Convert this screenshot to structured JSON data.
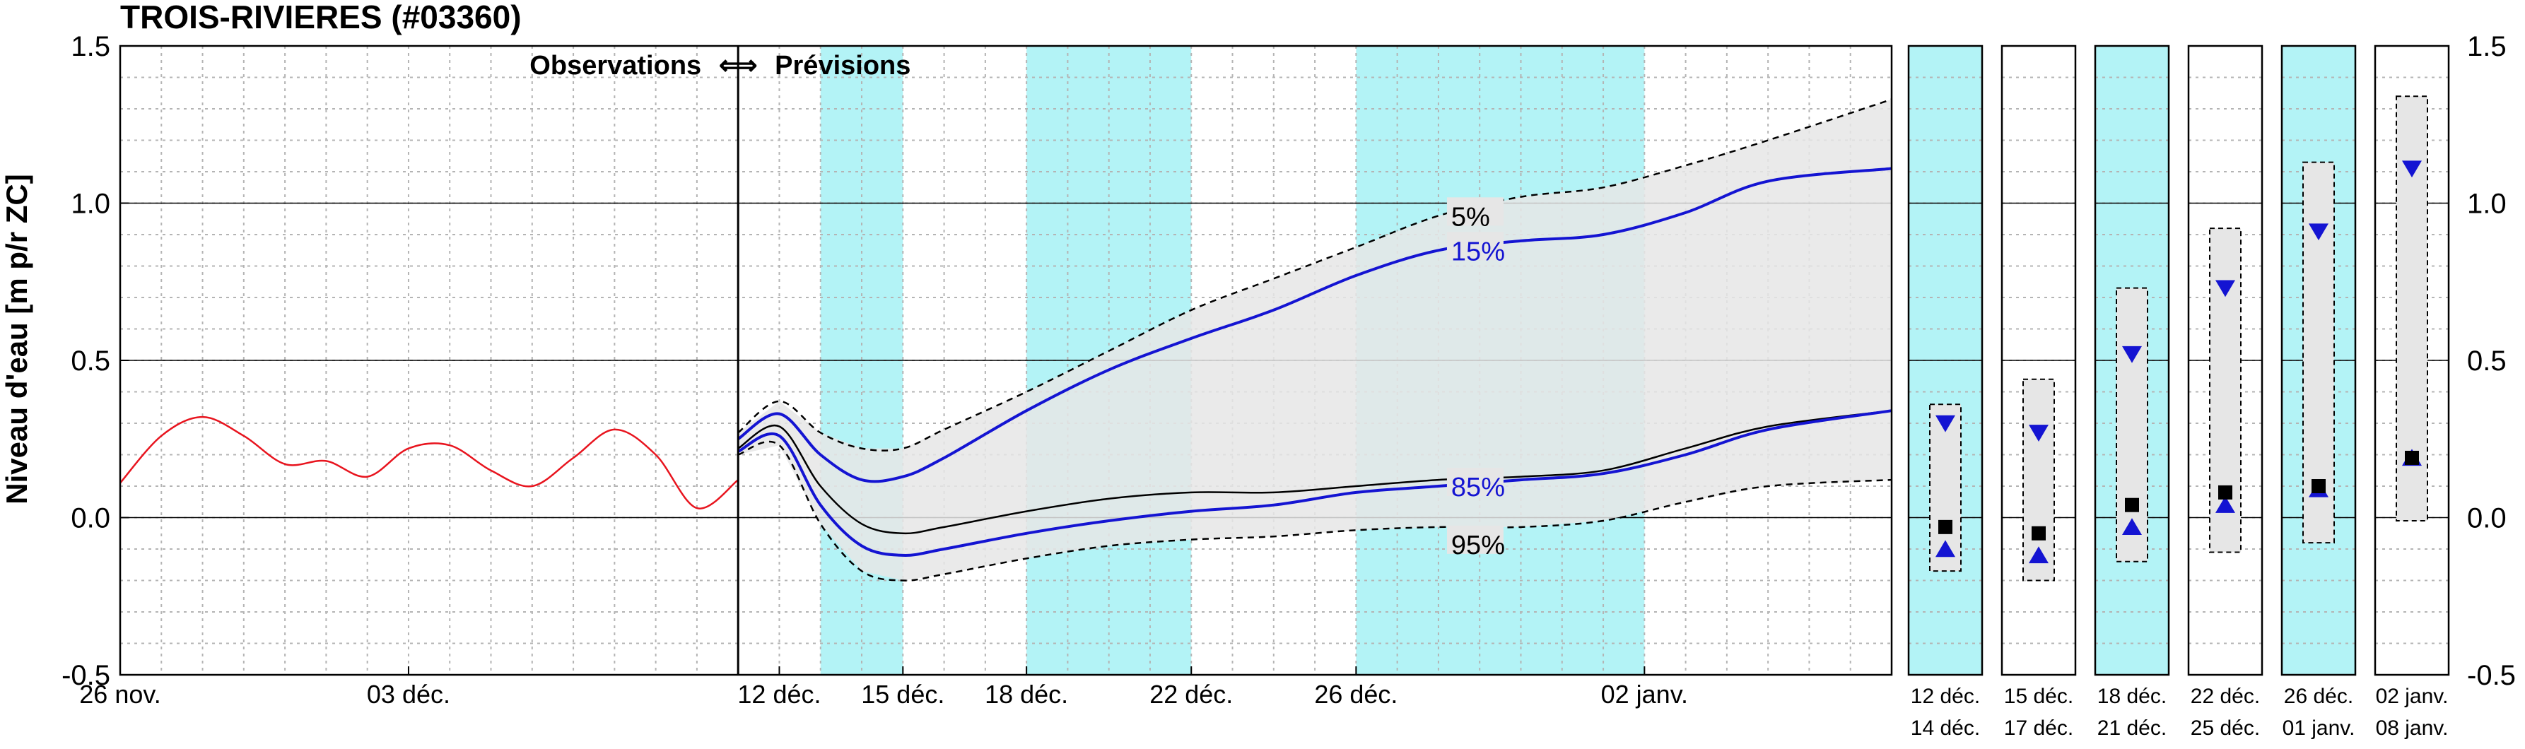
{
  "chart_data": {
    "type": "line",
    "title": "TROIS-RIVIERES (#03360)",
    "ylabel": "Niveau d'eau [m p/r ZC]",
    "ylim": [
      -0.5,
      1.5
    ],
    "yticks": [
      "-0.5",
      "0.0",
      "0.5",
      "1.0",
      "1.5"
    ],
    "yticks_right": [
      "-0.5",
      "0.0",
      "0.5",
      "1.0",
      "1.5"
    ],
    "xlim": [
      "2024-11-26",
      "2025-01-08"
    ],
    "observation_end": "2024-12-11",
    "annotations": {
      "left": "Observations",
      "arrow": "⟺",
      "right": "Prévisions"
    },
    "x_ticks": [
      {
        "date": "2024-11-26",
        "label": "26 nov."
      },
      {
        "date": "2024-12-03",
        "label": "03 déc."
      },
      {
        "date": "2024-12-12",
        "label": "12 déc."
      },
      {
        "date": "2024-12-15",
        "label": "15 déc."
      },
      {
        "date": "2024-12-18",
        "label": "18 déc."
      },
      {
        "date": "2024-12-22",
        "label": "22 déc."
      },
      {
        "date": "2024-12-26",
        "label": "26 déc."
      },
      {
        "date": "2025-01-02",
        "label": "02 janv."
      }
    ],
    "shaded_periods": [
      {
        "start": "2024-12-13",
        "end": "2024-12-15"
      },
      {
        "start": "2024-12-18",
        "end": "2024-12-22"
      },
      {
        "start": "2024-12-26",
        "end": "2025-01-02"
      }
    ],
    "colors": {
      "observed": "#e8141e",
      "median": "#000000",
      "p15_p85": "#1414d2",
      "envelope": "#888888",
      "fill": "#e6e6e6",
      "shade": "#b3f3f6"
    },
    "observed": {
      "x": [
        "2024-11-26",
        "2024-11-27",
        "2024-11-28",
        "2024-11-29",
        "2024-11-30",
        "2024-12-01",
        "2024-12-02",
        "2024-12-03",
        "2024-12-04",
        "2024-12-05",
        "2024-12-06",
        "2024-12-07",
        "2024-12-08",
        "2024-12-09",
        "2024-12-10",
        "2024-12-11"
      ],
      "y": [
        0.11,
        0.26,
        0.32,
        0.26,
        0.17,
        0.18,
        0.13,
        0.22,
        0.23,
        0.15,
        0.1,
        0.19,
        0.28,
        0.2,
        0.03,
        0.12
      ]
    },
    "forecast_x": [
      "2024-12-11",
      "2024-12-12",
      "2024-12-13",
      "2024-12-14",
      "2024-12-15",
      "2024-12-16",
      "2024-12-18",
      "2024-12-20",
      "2024-12-22",
      "2024-12-24",
      "2024-12-26",
      "2024-12-28",
      "2024-12-30",
      "2025-01-01",
      "2025-01-03",
      "2025-01-05",
      "2025-01-08"
    ],
    "series": [
      {
        "name": "5%",
        "y": [
          0.27,
          0.37,
          0.27,
          0.22,
          0.22,
          0.28,
          0.4,
          0.53,
          0.66,
          0.76,
          0.86,
          0.96,
          1.02,
          1.05,
          1.12,
          1.2,
          1.33
        ]
      },
      {
        "name": "15%",
        "y": [
          0.25,
          0.33,
          0.2,
          0.12,
          0.13,
          0.19,
          0.34,
          0.47,
          0.57,
          0.66,
          0.77,
          0.85,
          0.88,
          0.9,
          0.97,
          1.07,
          1.11
        ]
      },
      {
        "name": "",
        "y": [
          0.22,
          0.29,
          0.1,
          -0.02,
          -0.05,
          -0.03,
          0.02,
          0.06,
          0.08,
          0.08,
          0.1,
          0.12,
          0.13,
          0.15,
          0.22,
          0.29,
          0.34
        ]
      },
      {
        "name": "85%",
        "y": [
          0.21,
          0.26,
          0.04,
          -0.09,
          -0.12,
          -0.1,
          -0.05,
          -0.01,
          0.02,
          0.04,
          0.08,
          0.1,
          0.12,
          0.14,
          0.2,
          0.28,
          0.34
        ]
      },
      {
        "name": "95%",
        "y": [
          0.2,
          0.23,
          -0.02,
          -0.17,
          -0.2,
          -0.18,
          -0.13,
          -0.09,
          -0.07,
          -0.06,
          -0.04,
          -0.03,
          -0.03,
          -0.01,
          0.05,
          0.1,
          0.12
        ]
      }
    ],
    "period_boxes": [
      {
        "label1": "12 déc.",
        "label2": "14 déc.",
        "shaded": true,
        "min": -0.17,
        "max": 0.36,
        "p15": 0.3,
        "median": -0.03,
        "p85": -0.1
      },
      {
        "label1": "15 déc.",
        "label2": "17 déc.",
        "shaded": false,
        "min": -0.2,
        "max": 0.44,
        "p15": 0.27,
        "median": -0.05,
        "p85": -0.12
      },
      {
        "label1": "18 déc.",
        "label2": "21 déc.",
        "shaded": true,
        "min": -0.14,
        "max": 0.73,
        "p15": 0.52,
        "median": 0.04,
        "p85": -0.03
      },
      {
        "label1": "22 déc.",
        "label2": "25 déc.",
        "shaded": false,
        "min": -0.11,
        "max": 0.92,
        "p15": 0.73,
        "median": 0.08,
        "p85": 0.04
      },
      {
        "label1": "26 déc.",
        "label2": "01 janv.",
        "shaded": true,
        "min": -0.08,
        "max": 1.13,
        "p15": 0.91,
        "median": 0.1,
        "p85": 0.09
      },
      {
        "label1": "02 janv.",
        "label2": "08 janv.",
        "shaded": false,
        "min": -0.01,
        "max": 1.34,
        "p15": 1.11,
        "median": 0.19,
        "p85": 0.19
      }
    ]
  }
}
